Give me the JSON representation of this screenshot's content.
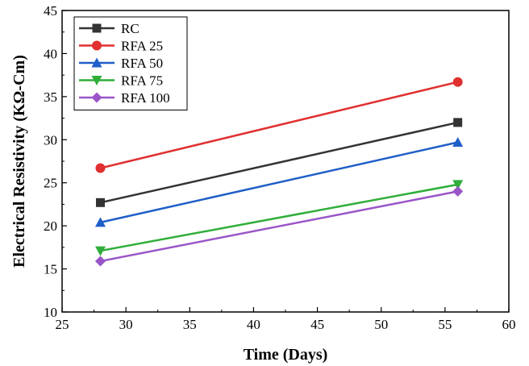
{
  "chart_data": {
    "type": "line",
    "title": "",
    "xlabel": "Time (Days)",
    "ylabel": "Electrical Resistivity (KΩ-Cm)",
    "xlim": [
      25,
      60
    ],
    "ylim": [
      10,
      45
    ],
    "xticks": [
      25,
      30,
      35,
      40,
      45,
      50,
      55,
      60
    ],
    "yticks": [
      10,
      15,
      20,
      25,
      30,
      35,
      40,
      45
    ],
    "grid": false,
    "legend_position": "top-left",
    "x": [
      28,
      56
    ],
    "series": [
      {
        "name": "RC",
        "values": [
          22.7,
          32.0
        ],
        "color": "#333333",
        "marker": "square"
      },
      {
        "name": "RFA 25",
        "values": [
          26.7,
          36.7
        ],
        "color": "#e03030",
        "marker": "circle"
      },
      {
        "name": "RFA 50",
        "values": [
          20.4,
          29.7
        ],
        "color": "#1f5fc8",
        "marker": "triangle-up"
      },
      {
        "name": "RFA 75",
        "values": [
          17.1,
          24.8
        ],
        "color": "#2fae3a",
        "marker": "triangle-down"
      },
      {
        "name": "RFA 100",
        "values": [
          15.9,
          24.0
        ],
        "color": "#9a55c8",
        "marker": "diamond"
      }
    ]
  }
}
